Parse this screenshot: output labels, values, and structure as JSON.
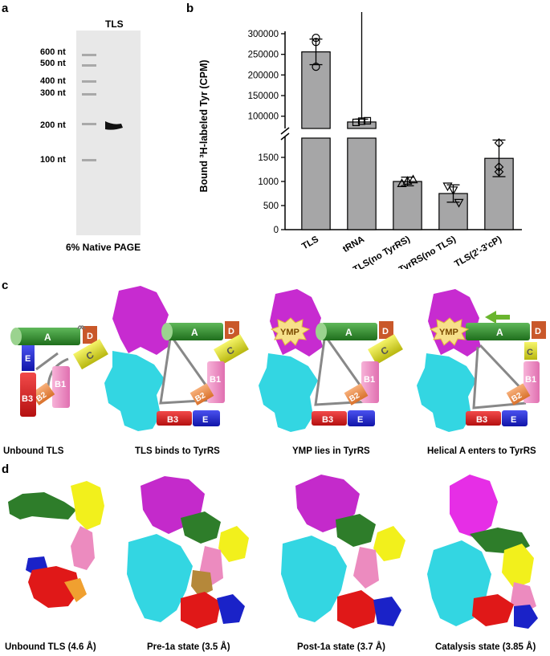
{
  "panel_a": {
    "letter": "a",
    "lane_label": "TLS",
    "markers": [
      "600 nt",
      "500 nt",
      "400 nt",
      "300 nt",
      "200 nt",
      "100 nt"
    ],
    "caption": "6% Native PAGE"
  },
  "panel_b": {
    "letter": "b",
    "ylabel": "Bound ³H-labeled Tyr (CPM)",
    "upper_ticks": [
      "300000",
      "250000",
      "200000",
      "150000",
      "100000"
    ],
    "lower_ticks": [
      "1500",
      "1000",
      "500",
      "0"
    ]
  },
  "chart_data": {
    "type": "bar",
    "categories": [
      "TLS",
      "tRNA",
      "TLS(no TyrRS)",
      "TyrRS(no TLS)",
      "TLS(2'-3'cP)"
    ],
    "values": [
      256000,
      86000,
      1000,
      750,
      1480
    ],
    "errors": [
      31000,
      7000,
      90,
      180,
      380
    ],
    "points": [
      [
        290000,
        280000,
        220000
      ],
      [
        85000,
        88000,
        89000
      ],
      [
        960,
        1010,
        1040
      ],
      [
        900,
        820,
        560
      ],
      [
        1800,
        1300,
        1200
      ]
    ],
    "ylabel": "Bound ³H-labeled Tyr (CPM)",
    "axis_break": [
      1800,
      80000
    ],
    "ylim_lower": [
      0,
      1800
    ],
    "ylim_upper": [
      80000,
      300000
    ],
    "bar_color": "#a6a6a7"
  },
  "panel_c": {
    "letter": "c",
    "captions": [
      "Unbound TLS",
      "TLS binds to TyrRS",
      "YMP lies in TyrRS",
      "Helical A enters to TyrRS"
    ],
    "ymp_label": "YMP",
    "helix_labels": {
      "A": "A",
      "B1": "B1",
      "B2": "B2",
      "B3": "B3",
      "C": "C",
      "D": "D",
      "E": "E"
    },
    "colors": {
      "A": "#2f8a2a",
      "B1": "#f28bc2",
      "B2": "#f0944e",
      "B3": "#e21c1c",
      "C": "#e8e71a",
      "D": "#c9582a",
      "E": "#1b22d6",
      "tyrrs_top": "#c72bd0",
      "tyrrs_bottom": "#33d6e2"
    }
  },
  "panel_d": {
    "letter": "d",
    "captions": [
      "Unbound TLS (4.6 Å)",
      "Pre-1a state (3.5 Å)",
      "Post-1a state (3.7 Å)",
      "Catalysis state (3.85 Å)"
    ]
  }
}
